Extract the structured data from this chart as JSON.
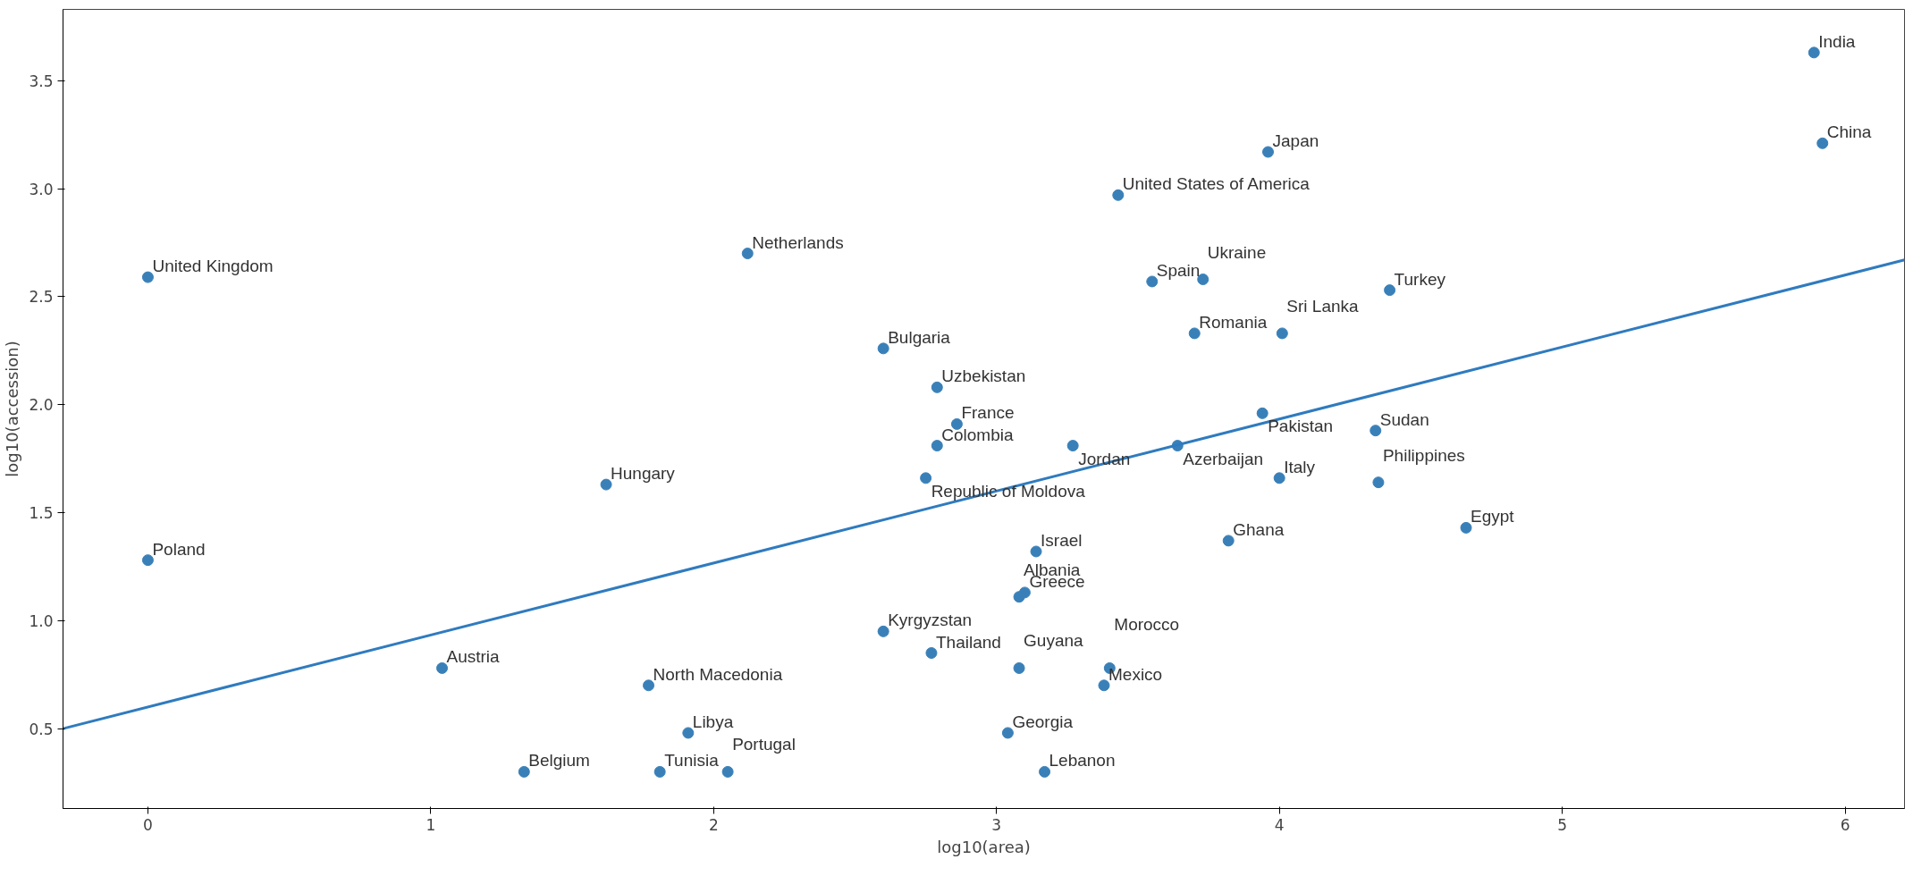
{
  "chart_data": {
    "type": "scatter",
    "xlabel": "log10(area)",
    "ylabel": "log10(accession)",
    "xlim": [
      -0.3,
      6.21
    ],
    "ylim": [
      0.13,
      3.83
    ],
    "xticks": [
      0,
      1,
      2,
      3,
      4,
      5,
      6
    ],
    "yticks": [
      {
        "value": 0.5,
        "label": "0.5"
      },
      {
        "value": 1.0,
        "label": "1.0"
      },
      {
        "value": 1.5,
        "label": "1.5"
      },
      {
        "value": 2.0,
        "label": "2.0"
      },
      {
        "value": 2.5,
        "label": "2.5"
      },
      {
        "value": 3.0,
        "label": "3.0"
      },
      {
        "value": 3.5,
        "label": "3.5"
      }
    ],
    "grid": false,
    "series": [
      {
        "color": "#3a80b8",
        "marker": "circle",
        "x": [
          5.89,
          5.92,
          3.96,
          3.43,
          2.12,
          0,
          3.55,
          3.73,
          4.39,
          3.7,
          4.01,
          2.6,
          2.79,
          3.94,
          2.86,
          4.34,
          2.79,
          3.27,
          3.64,
          2.75,
          1.62,
          4.0,
          4.35,
          4.66,
          3.82,
          3.14,
          0,
          3.1,
          3.08,
          2.6,
          2.77,
          1.04,
          3.08,
          3.4,
          1.77,
          3.38,
          1.91,
          3.04,
          1.33,
          1.81,
          2.05,
          3.17
        ],
        "values": [
          3.63,
          3.21,
          3.17,
          2.97,
          2.7,
          2.59,
          2.57,
          2.58,
          2.53,
          2.33,
          2.33,
          2.26,
          2.08,
          1.96,
          1.91,
          1.88,
          1.81,
          1.81,
          1.81,
          1.66,
          1.63,
          1.66,
          1.64,
          1.43,
          1.37,
          1.32,
          1.28,
          1.13,
          1.11,
          0.95,
          0.85,
          0.78,
          0.78,
          0.78,
          0.7,
          0.7,
          0.48,
          0.48,
          0.3,
          0.3,
          0.3,
          0.3
        ]
      },
      {
        "type": "line",
        "color": "#2f7bbf",
        "marker": "none",
        "x": [
          -0.3,
          6.21
        ],
        "values": [
          0.5,
          2.67
        ]
      }
    ],
    "annotations": [
      {
        "text": "India",
        "x": 5.89,
        "y": 3.63
      },
      {
        "text": "China",
        "x": 5.92,
        "y": 3.21
      },
      {
        "text": "Japan",
        "x": 3.96,
        "y": 3.17
      },
      {
        "text": "United States of America",
        "x": 3.43,
        "y": 2.97
      },
      {
        "text": "Netherlands",
        "x": 2.12,
        "y": 2.7
      },
      {
        "text": "United Kingdom",
        "x": 0,
        "y": 2.59
      },
      {
        "text": "Spain",
        "x": 3.55,
        "y": 2.57
      },
      {
        "text": "Ukraine",
        "x": 3.73,
        "y": 2.58
      },
      {
        "text": "Turkey",
        "x": 4.39,
        "y": 2.53
      },
      {
        "text": "Romania",
        "x": 3.7,
        "y": 2.33
      },
      {
        "text": "Sri Lanka",
        "x": 4.01,
        "y": 2.33
      },
      {
        "text": "Bulgaria",
        "x": 2.6,
        "y": 2.26
      },
      {
        "text": "Uzbekistan",
        "x": 2.79,
        "y": 2.08
      },
      {
        "text": "Pakistan",
        "x": 3.94,
        "y": 1.96
      },
      {
        "text": "France",
        "x": 2.86,
        "y": 1.91
      },
      {
        "text": "Sudan",
        "x": 4.34,
        "y": 1.88
      },
      {
        "text": "Colombia",
        "x": 2.79,
        "y": 1.81
      },
      {
        "text": "Jordan",
        "x": 3.27,
        "y": 1.81
      },
      {
        "text": "Azerbaijan",
        "x": 3.64,
        "y": 1.81
      },
      {
        "text": "Republic of Moldova",
        "x": 2.75,
        "y": 1.66
      },
      {
        "text": "Hungary",
        "x": 1.62,
        "y": 1.63
      },
      {
        "text": "Italy",
        "x": 4.0,
        "y": 1.66
      },
      {
        "text": "Philippines",
        "x": 4.35,
        "y": 1.64
      },
      {
        "text": "Egypt",
        "x": 4.66,
        "y": 1.43
      },
      {
        "text": "Ghana",
        "x": 3.82,
        "y": 1.37
      },
      {
        "text": "Israel",
        "x": 3.14,
        "y": 1.32
      },
      {
        "text": "Poland",
        "x": 0,
        "y": 1.28
      },
      {
        "text": "Greece",
        "x": 3.1,
        "y": 1.13
      },
      {
        "text": "Albania",
        "x": 3.08,
        "y": 1.11
      },
      {
        "text": "Kyrgyzstan",
        "x": 2.6,
        "y": 0.95
      },
      {
        "text": "Thailand",
        "x": 2.77,
        "y": 0.85
      },
      {
        "text": "Austria",
        "x": 1.04,
        "y": 0.78
      },
      {
        "text": "Guyana",
        "x": 3.08,
        "y": 0.78
      },
      {
        "text": "Morocco",
        "x": 3.4,
        "y": 0.78
      },
      {
        "text": "North Macedonia",
        "x": 1.77,
        "y": 0.7
      },
      {
        "text": "Mexico",
        "x": 3.38,
        "y": 0.7
      },
      {
        "text": "Libya",
        "x": 1.91,
        "y": 0.48
      },
      {
        "text": "Georgia",
        "x": 3.04,
        "y": 0.48
      },
      {
        "text": "Belgium",
        "x": 1.33,
        "y": 0.3
      },
      {
        "text": "Tunisia",
        "x": 1.81,
        "y": 0.3
      },
      {
        "text": "Portugal",
        "x": 2.05,
        "y": 0.3
      },
      {
        "text": "Lebanon",
        "x": 3.17,
        "y": 0.3
      }
    ]
  }
}
